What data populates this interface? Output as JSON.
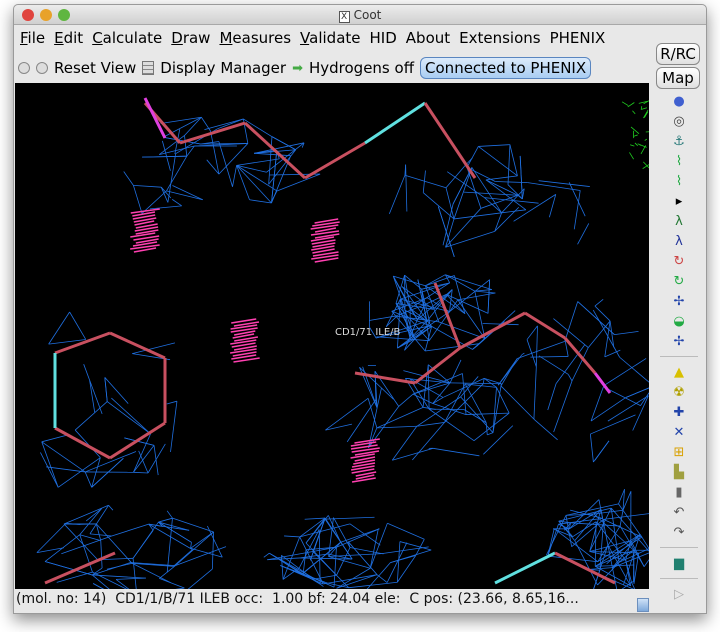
{
  "window": {
    "title": "Coot",
    "x_badge": "X"
  },
  "menu": [
    {
      "label": "File",
      "u": "F",
      "rest": "ile"
    },
    {
      "label": "Edit",
      "u": "E",
      "rest": "dit"
    },
    {
      "label": "Calculate",
      "u": "C",
      "rest": "alculate"
    },
    {
      "label": "Draw",
      "u": "D",
      "rest": "raw"
    },
    {
      "label": "Measures",
      "u": "M",
      "rest": "easures"
    },
    {
      "label": "Validate",
      "u": "V",
      "rest": "alidate"
    },
    {
      "label": "HID",
      "u": "",
      "rest": "HID"
    },
    {
      "label": "About",
      "u": "",
      "rest": "About"
    },
    {
      "label": "Extensions",
      "u": "",
      "rest": "Extensions"
    },
    {
      "label": "PHENIX",
      "u": "",
      "rest": "PHENIX"
    }
  ],
  "toolbar": {
    "reset_view": "Reset View",
    "display_manager": "Display Manager",
    "hydrogens": "Hydrogens off",
    "phenix": "Connected to PHENIX"
  },
  "side": {
    "rrc": "R/RC",
    "map": "Map"
  },
  "viewport": {
    "atom_label": "CD1/71 ILE/B",
    "colors": {
      "mesh": "#1f6fe0",
      "bonds": "#c85060",
      "highlight": "#60e0e0",
      "magenta": "#e040e0",
      "green_mesh": "#20d020"
    }
  },
  "right_tools": [
    {
      "name": "rotate-view-icon",
      "g": "●",
      "c": "#4060d0"
    },
    {
      "name": "centre-atom-icon",
      "g": "◎",
      "c": "#444"
    },
    {
      "name": "anchor-icon",
      "g": "⚓",
      "c": "#2a7a7a"
    },
    {
      "name": "real-space-refine-icon",
      "g": "⌇",
      "c": "#22aa44"
    },
    {
      "name": "regularize-icon",
      "g": "⌇",
      "c": "#22aa44"
    },
    {
      "name": "arrow-right-icon",
      "g": "▸",
      "c": "#000"
    },
    {
      "name": "rigid-body-icon",
      "g": "λ",
      "c": "#227733"
    },
    {
      "name": "rotate-translate-icon",
      "g": "λ",
      "c": "#223399"
    },
    {
      "name": "auto-fit-rotamer-icon",
      "g": "↻",
      "c": "#cc4444"
    },
    {
      "name": "rotamer-icon",
      "g": "↻",
      "c": "#22aa44"
    },
    {
      "name": "edit-chi-icon",
      "g": "✢",
      "c": "#2244aa"
    },
    {
      "name": "side-chain-icon",
      "g": "◒",
      "c": "#22aa44"
    },
    {
      "name": "torsion-icon",
      "g": "✢",
      "c": "#2244aa"
    },
    {
      "sep": true
    },
    {
      "name": "flip-peptide-icon",
      "g": "▲",
      "c": "#d8c000"
    },
    {
      "name": "radiation-icon",
      "g": "☢",
      "c": "#b0a000"
    },
    {
      "name": "add-atom-icon",
      "g": "✚",
      "c": "#2244aa"
    },
    {
      "name": "add-terminal-residue-icon",
      "g": "✕",
      "c": "#2244aa"
    },
    {
      "name": "add-alt-conf-icon",
      "g": "⊞",
      "c": "#d8a000"
    },
    {
      "name": "stamp-icon",
      "g": "▙",
      "c": "#a0a040"
    },
    {
      "name": "delete-icon",
      "g": "▮",
      "c": "#666"
    },
    {
      "name": "undo-icon",
      "g": "↶",
      "c": "#555"
    },
    {
      "name": "redo-icon",
      "g": "↷",
      "c": "#555"
    },
    {
      "sep": true
    },
    {
      "name": "flag-icon",
      "g": "▆",
      "c": "#208070"
    },
    {
      "sep": true
    },
    {
      "name": "play-icon",
      "g": "▷",
      "c": "#aaa"
    }
  ],
  "status": "(mol. no: 14)  CD1/1/B/71 ILEB occ:  1.00 bf: 24.04 ele:  C pos: (23.66, 8.65,16..."
}
